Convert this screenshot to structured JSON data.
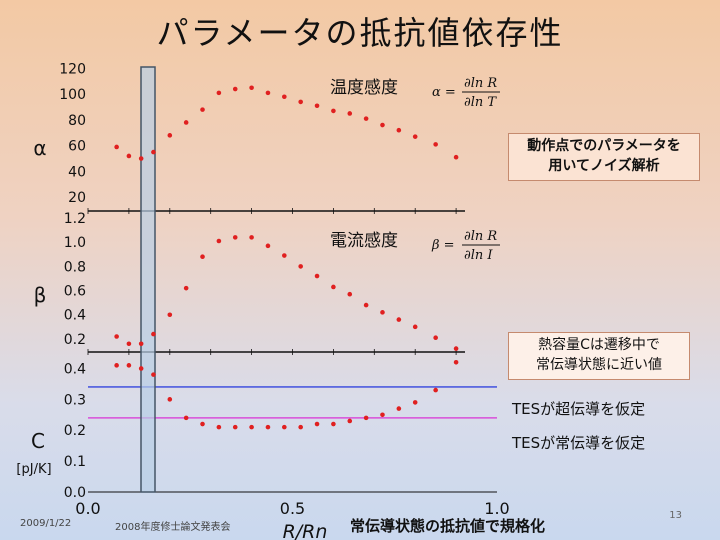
{
  "title": "パラメータの抵抗値依存性",
  "notes": {
    "operating_point": [
      "動作点でのパラメータを",
      "用いてノイズ解析"
    ],
    "heat_capacity": [
      "熱容量Cは遷移中で",
      "常伝導状態に近い値"
    ],
    "superconducting": "TESが超伝導を仮定",
    "normal": "TESが常伝導を仮定",
    "bottom": "常伝導状態の抵抗値で規格化"
  },
  "footer": {
    "date": "2009/1/22",
    "event": "2008年度修士論文発表会",
    "page": "13"
  },
  "chart_data": [
    {
      "type": "scatter",
      "panel": "alpha",
      "ylabel": "α",
      "label": "温度感度",
      "formula": {
        "sym": "α =",
        "num": "∂ln R",
        "den": "∂ln T"
      },
      "yticks": [
        20,
        40,
        60,
        80,
        100,
        120
      ],
      "ylim": [
        10,
        125
      ],
      "x": [
        0.07,
        0.1,
        0.13,
        0.16,
        0.2,
        0.24,
        0.28,
        0.32,
        0.36,
        0.4,
        0.44,
        0.48,
        0.52,
        0.56,
        0.6,
        0.64,
        0.68,
        0.72,
        0.76,
        0.8,
        0.85,
        0.9
      ],
      "y": [
        59,
        52,
        50,
        55,
        68,
        78,
        88,
        101,
        104,
        105,
        101,
        98,
        94,
        91,
        87,
        85,
        81,
        76,
        72,
        67,
        61,
        51
      ]
    },
    {
      "type": "scatter",
      "panel": "beta",
      "ylabel": "β",
      "label": "電流感度",
      "formula": {
        "sym": "β =",
        "num": "∂ln R",
        "den": "∂ln I"
      },
      "yticks": [
        0.2,
        0.4,
        0.6,
        0.8,
        1.0,
        1.2
      ],
      "ylim": [
        0.1,
        1.25
      ],
      "x": [
        0.07,
        0.1,
        0.13,
        0.16,
        0.2,
        0.24,
        0.28,
        0.32,
        0.36,
        0.4,
        0.44,
        0.48,
        0.52,
        0.56,
        0.6,
        0.64,
        0.68,
        0.72,
        0.76,
        0.8,
        0.85,
        0.9
      ],
      "y": [
        0.22,
        0.16,
        0.16,
        0.24,
        0.4,
        0.62,
        0.88,
        1.01,
        1.04,
        1.04,
        0.97,
        0.89,
        0.8,
        0.72,
        0.63,
        0.57,
        0.48,
        0.42,
        0.36,
        0.3,
        0.21,
        0.12
      ]
    },
    {
      "type": "scatter",
      "panel": "C",
      "ylabel": "C",
      "yunit": "[pJ/K]",
      "yticks": [
        0.0,
        0.1,
        0.2,
        0.3,
        0.4
      ],
      "ylim": [
        0.0,
        0.45
      ],
      "xticks": [
        "0.0",
        "0.5",
        "1.0"
      ],
      "xlim": [
        0.0,
        1.0
      ],
      "xlabel": "R/Rn",
      "x": [
        0.07,
        0.1,
        0.13,
        0.16,
        0.2,
        0.24,
        0.28,
        0.32,
        0.36,
        0.4,
        0.44,
        0.48,
        0.52,
        0.56,
        0.6,
        0.64,
        0.68,
        0.72,
        0.76,
        0.8,
        0.85,
        0.9
      ],
      "y": [
        0.41,
        0.41,
        0.4,
        0.38,
        0.3,
        0.24,
        0.22,
        0.21,
        0.21,
        0.21,
        0.21,
        0.21,
        0.21,
        0.22,
        0.22,
        0.23,
        0.24,
        0.25,
        0.27,
        0.29,
        0.33,
        0.42
      ],
      "reference_lines": [
        {
          "name": "superconducting",
          "value": 0.34,
          "color": "#3344dd"
        },
        {
          "name": "normal",
          "value": 0.24,
          "color": "#d94fd9"
        }
      ]
    }
  ],
  "colors": {
    "points": "#e02020",
    "highlight_fill": "#b8cfe6",
    "highlight_stroke": "#445566"
  }
}
